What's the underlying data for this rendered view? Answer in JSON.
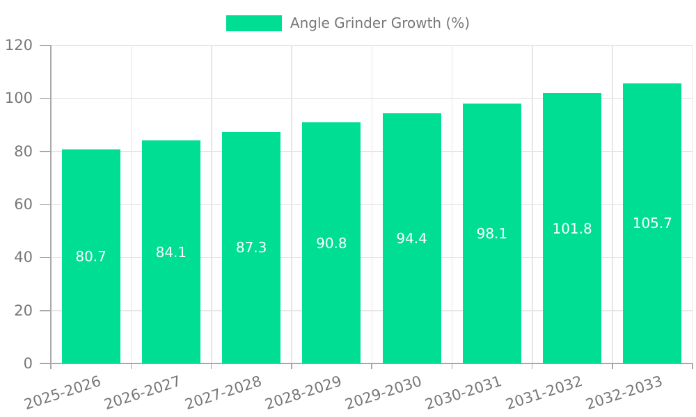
{
  "legend": {
    "label": "Angle Grinder Growth (%)"
  },
  "chart_data": {
    "type": "bar",
    "title": "Angle Grinder Growth (%)",
    "categories": [
      "2025-2026",
      "2026-2027",
      "2027-2028",
      "2028-2029",
      "2029-2030",
      "2030-2031",
      "2031-2032",
      "2032-2033"
    ],
    "series": [
      {
        "name": "Angle Grinder Growth (%)",
        "values": [
          80.7,
          84.1,
          87.3,
          90.8,
          94.4,
          98.1,
          101.8,
          105.7
        ]
      }
    ],
    "bar_value_labels": [
      "80.7",
      "84.1",
      "87.3",
      "90.8",
      "94.4",
      "98.1",
      "101.8",
      "105.7"
    ],
    "xlabel": "",
    "ylabel": "",
    "ylim": [
      0,
      120
    ],
    "ytick_step": 20,
    "ytick_labels": [
      "0",
      "20",
      "40",
      "60",
      "80",
      "100",
      "120"
    ],
    "grid": true,
    "legend_position": "top-center",
    "bar_labels_inside": true,
    "colors": {
      "bar": "#00DE94",
      "bar_label": "#FFFFFF",
      "axis": "#A8A8A8",
      "grid": "#E6E6E6",
      "text": "#777777"
    }
  }
}
